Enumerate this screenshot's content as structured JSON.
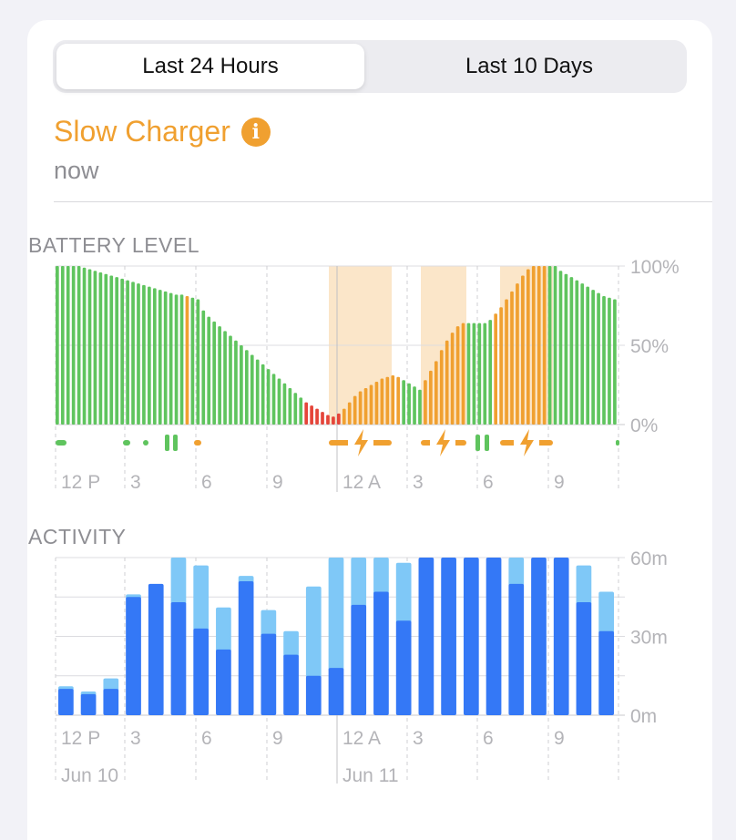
{
  "tabs": [
    {
      "label": "Last 24 Hours",
      "selected": true
    },
    {
      "label": "Last 10 Days",
      "selected": false
    }
  ],
  "status": {
    "title": "Slow Charger",
    "time": "now",
    "icon": "info-icon",
    "color": "#f0a030"
  },
  "colors": {
    "green": "#5fc45e",
    "orange": "#f0a030",
    "red": "#e5453a",
    "charge_band": "#fbe6c9",
    "activity_dark": "#3478f6",
    "activity_light": "#7fc8f7"
  },
  "battery": {
    "label": "BATTERY LEVEL",
    "y_ticks": [
      "100%",
      "50%",
      "0%"
    ],
    "x_ticks": [
      "12 P",
      "3",
      "6",
      "9",
      "12 A",
      "3",
      "6",
      "9"
    ],
    "ylim": [
      0,
      100
    ],
    "levels": [
      100,
      100,
      100,
      100,
      100,
      99,
      98,
      97,
      96,
      95,
      94,
      93,
      92,
      91,
      90,
      89,
      88,
      87,
      86,
      85,
      84,
      83,
      82,
      82,
      81,
      80,
      79,
      72,
      68,
      65,
      62,
      59,
      56,
      53,
      50,
      47,
      44,
      41,
      38,
      35,
      32,
      29,
      26,
      23,
      20,
      17,
      14,
      12,
      10,
      8,
      6,
      5,
      7,
      10,
      14,
      18,
      21,
      23,
      25,
      27,
      29,
      30,
      31,
      30,
      28,
      26,
      24,
      22,
      28,
      34,
      40,
      47,
      53,
      58,
      62,
      64,
      64,
      64,
      64,
      64,
      66,
      70,
      74,
      79,
      84,
      89,
      94,
      98,
      100,
      100,
      100,
      100,
      100,
      97,
      95,
      93,
      91,
      89,
      87,
      85,
      83,
      81,
      80,
      79
    ],
    "level_colors": [
      "g",
      "g",
      "g",
      "g",
      "g",
      "g",
      "g",
      "g",
      "g",
      "g",
      "g",
      "g",
      "g",
      "g",
      "g",
      "g",
      "g",
      "g",
      "g",
      "g",
      "g",
      "g",
      "g",
      "g",
      "o",
      "g",
      "g",
      "g",
      "g",
      "g",
      "g",
      "g",
      "g",
      "g",
      "g",
      "g",
      "g",
      "g",
      "g",
      "g",
      "g",
      "g",
      "g",
      "g",
      "g",
      "g",
      "r",
      "r",
      "r",
      "r",
      "r",
      "r",
      "r",
      "o",
      "o",
      "o",
      "o",
      "o",
      "o",
      "o",
      "o",
      "o",
      "o",
      "o",
      "g",
      "g",
      "g",
      "g",
      "o",
      "o",
      "o",
      "o",
      "o",
      "o",
      "o",
      "o",
      "g",
      "g",
      "g",
      "g",
      "g",
      "o",
      "o",
      "o",
      "o",
      "o",
      "o",
      "o",
      "o",
      "o",
      "o",
      "g",
      "g",
      "g",
      "g",
      "g",
      "g",
      "g",
      "g",
      "g",
      "g",
      "g",
      "g",
      "g"
    ]
  },
  "activity": {
    "label": "ACTIVITY",
    "y_ticks": [
      "60m",
      "30m",
      "0m"
    ],
    "x_ticks": [
      "12 P",
      "3",
      "6",
      "9",
      "12 A",
      "3",
      "6",
      "9"
    ],
    "dates": [
      "Jun 10",
      "Jun 11"
    ],
    "ylim": [
      0,
      60
    ],
    "screen_on": [
      10,
      8,
      10,
      45,
      50,
      43,
      33,
      25,
      51,
      31,
      23,
      15,
      18,
      42,
      47,
      36,
      60,
      60,
      60,
      60,
      50,
      60,
      60,
      43,
      32
    ],
    "screen_off": [
      1,
      1,
      4,
      1,
      0,
      17,
      24,
      16,
      2,
      9,
      9,
      34,
      42,
      18,
      13,
      22,
      0,
      0,
      0,
      0,
      10,
      0,
      0,
      14,
      15
    ]
  }
}
